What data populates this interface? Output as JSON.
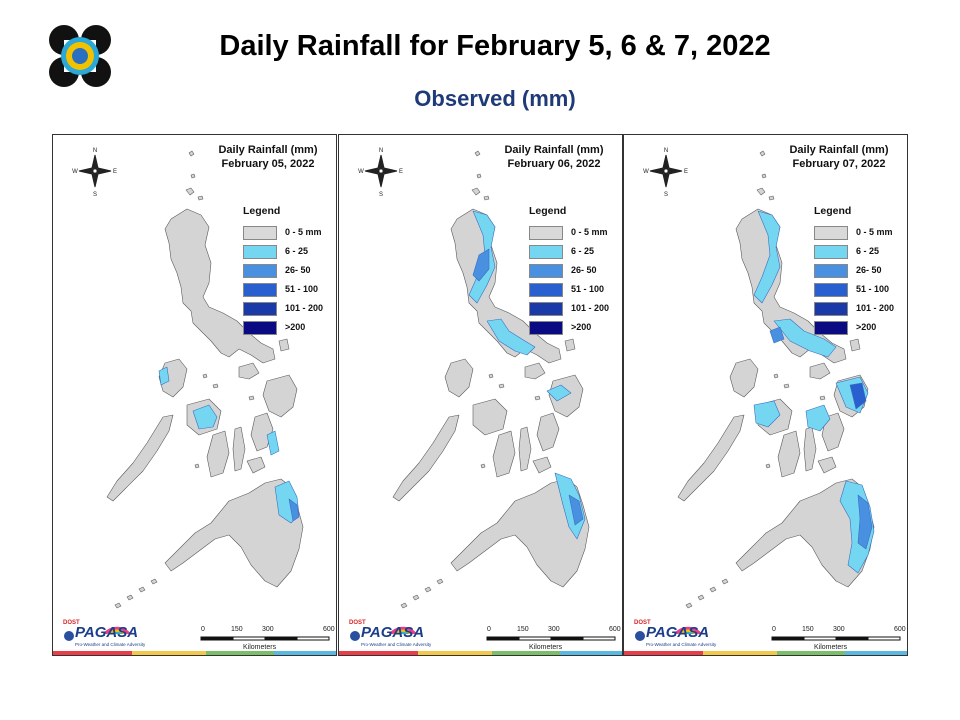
{
  "header": {
    "title": "Daily Rainfall for February 5, 6 & 7, 2022",
    "subtitle": "Observed (mm)"
  },
  "compass": {
    "n": "N",
    "s": "S",
    "e": "E",
    "w": "W"
  },
  "legend": {
    "title": "Legend",
    "items": [
      {
        "label": "0 - 5 mm",
        "color": "#d9d9d9"
      },
      {
        "label": "6 - 25",
        "color": "#75d6f2"
      },
      {
        "label": "26- 50",
        "color": "#4a90e0"
      },
      {
        "label": "51 - 100",
        "color": "#2a5fd0"
      },
      {
        "label": "101 - 200",
        "color": "#1a3aa8"
      },
      {
        "label": ">200",
        "color": "#0a0a82"
      }
    ]
  },
  "scale": {
    "ticks": [
      "0",
      "150",
      "300",
      "600"
    ],
    "unit": "Kilometers"
  },
  "brand": {
    "top": "DOST",
    "name": "PAGASA",
    "sub": "Pro-Weather and Climate Adversity"
  },
  "panels": [
    {
      "title_line1": "Daily Rainfall (mm)",
      "title_line2": "February 05, 2022"
    },
    {
      "title_line1": "Daily Rainfall (mm)",
      "title_line2": "February 06, 2022"
    },
    {
      "title_line1": "Daily Rainfall (mm)",
      "title_line2": "February 07, 2022"
    }
  ]
}
